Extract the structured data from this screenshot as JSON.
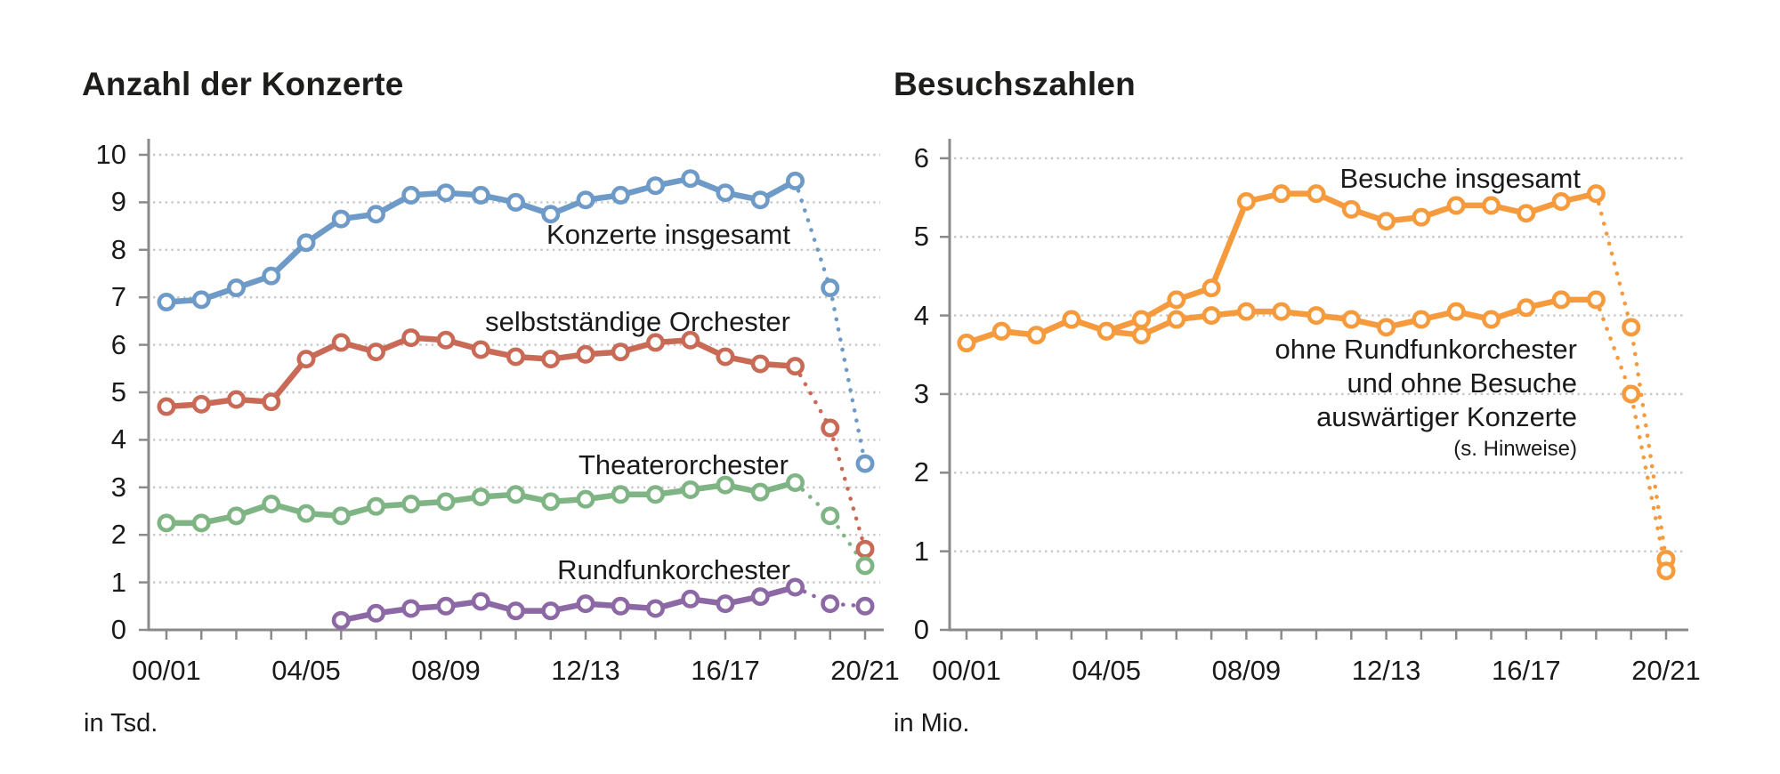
{
  "colors": {
    "background": "#ffffff",
    "text": "#1a1a1a",
    "axis": "#8a8a8a",
    "gridline": "#c7c7c7",
    "blue": "#6d9ac7",
    "red": "#c96a57",
    "green": "#7fb584",
    "purple": "#8c68a5",
    "orange": "#f59b3d"
  },
  "chart_data": [
    {
      "type": "line",
      "title": "Anzahl der Konzerte",
      "unit": "in Tsd.",
      "ylim": [
        0,
        10
      ],
      "y_ticks": [
        0,
        1,
        2,
        3,
        4,
        5,
        6,
        7,
        8,
        9,
        10
      ],
      "x_tick_labels_shown": [
        "00/01",
        "04/05",
        "08/09",
        "12/13",
        "16/17",
        "20/21"
      ],
      "categories": [
        "00/01",
        "01/02",
        "02/03",
        "03/04",
        "04/05",
        "05/06",
        "06/07",
        "07/08",
        "08/09",
        "09/10",
        "10/11",
        "11/12",
        "12/13",
        "13/14",
        "14/15",
        "15/16",
        "16/17",
        "17/18",
        "18/19",
        "19/20",
        "20/21"
      ],
      "grid": "dotted-horizontal",
      "legend_position": "inline-annotations",
      "series": [
        {
          "name": "Konzerte insgesamt",
          "color": "#6d9ac7",
          "dotted_from_index": 18,
          "values": [
            6.9,
            6.95,
            7.2,
            7.45,
            8.15,
            8.65,
            8.75,
            9.15,
            9.2,
            9.15,
            9.0,
            8.75,
            9.05,
            9.15,
            9.35,
            9.5,
            9.2,
            9.05,
            9.45,
            7.2,
            3.5
          ]
        },
        {
          "name": "selbstständige Orchester",
          "color": "#c96a57",
          "dotted_from_index": 18,
          "values": [
            4.7,
            4.75,
            4.85,
            4.8,
            5.7,
            6.05,
            5.85,
            6.15,
            6.1,
            5.9,
            5.75,
            5.7,
            5.8,
            5.85,
            6.05,
            6.1,
            5.75,
            5.6,
            5.55,
            4.25,
            1.7
          ]
        },
        {
          "name": "Theaterorchester",
          "color": "#7fb584",
          "dotted_from_index": 18,
          "values": [
            2.25,
            2.25,
            2.4,
            2.65,
            2.45,
            2.4,
            2.6,
            2.65,
            2.7,
            2.8,
            2.85,
            2.7,
            2.75,
            2.85,
            2.85,
            2.95,
            3.05,
            2.9,
            3.1,
            2.4,
            1.35
          ]
        },
        {
          "name": "Rundfunkorchester",
          "color": "#8c68a5",
          "dotted_from_index": 18,
          "values": [
            null,
            null,
            null,
            null,
            null,
            0.2,
            0.35,
            0.45,
            0.5,
            0.6,
            0.4,
            0.4,
            0.55,
            0.5,
            0.45,
            0.65,
            0.55,
            0.7,
            0.9,
            0.55,
            0.5
          ]
        }
      ]
    },
    {
      "type": "line",
      "title": "Besuchszahlen",
      "unit": "in Mio.",
      "ylim": [
        0,
        6
      ],
      "y_ticks": [
        0,
        1,
        2,
        3,
        4,
        5,
        6
      ],
      "x_tick_labels_shown": [
        "00/01",
        "04/05",
        "08/09",
        "12/13",
        "16/17",
        "20/21"
      ],
      "categories": [
        "00/01",
        "01/02",
        "02/03",
        "03/04",
        "04/05",
        "05/06",
        "06/07",
        "07/08",
        "08/09",
        "09/10",
        "10/11",
        "11/12",
        "12/13",
        "13/14",
        "14/15",
        "15/16",
        "16/17",
        "17/18",
        "18/19",
        "19/20",
        "20/21"
      ],
      "grid": "dotted-horizontal",
      "legend_position": "inline-annotations",
      "series": [
        {
          "name": "Besuche insgesamt",
          "color": "#f59b3d",
          "dotted_from_index": 18,
          "values": [
            3.65,
            3.8,
            3.75,
            3.95,
            3.8,
            3.95,
            4.2,
            4.35,
            5.45,
            5.55,
            5.55,
            5.35,
            5.2,
            5.25,
            5.4,
            5.4,
            5.3,
            5.45,
            5.55,
            3.85,
            0.9
          ]
        },
        {
          "name": "ohne Rundfunkorchester und ohne Besuche auswärtiger Konzerte",
          "color": "#f59b3d",
          "dotted_from_index": 18,
          "label_lines": [
            "ohne Rundfunkorchester",
            "und ohne Besuche",
            "auswärtiger Konzerte",
            "(s. Hinweise)"
          ],
          "values": [
            3.65,
            3.8,
            3.75,
            3.95,
            3.8,
            3.75,
            3.95,
            4.0,
            4.05,
            4.05,
            4.0,
            3.95,
            3.85,
            3.95,
            4.05,
            3.95,
            4.1,
            4.2,
            4.2,
            3.0,
            0.75
          ]
        }
      ]
    }
  ]
}
